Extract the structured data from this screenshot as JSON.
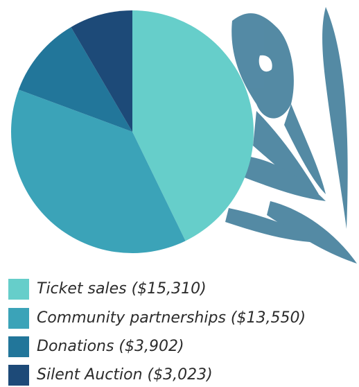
{
  "chart_data": {
    "type": "pie",
    "categories": [
      "Ticket sales ($15,310)",
      "Community partnerships ($13,550)",
      "Donations ($3,902)",
      "Silent Auction ($3,023)"
    ],
    "values": [
      15310,
      13550,
      3902,
      3023
    ],
    "colors": [
      "#66ceca",
      "#3ba3b8",
      "#22769a",
      "#1d4a78"
    ]
  }
}
